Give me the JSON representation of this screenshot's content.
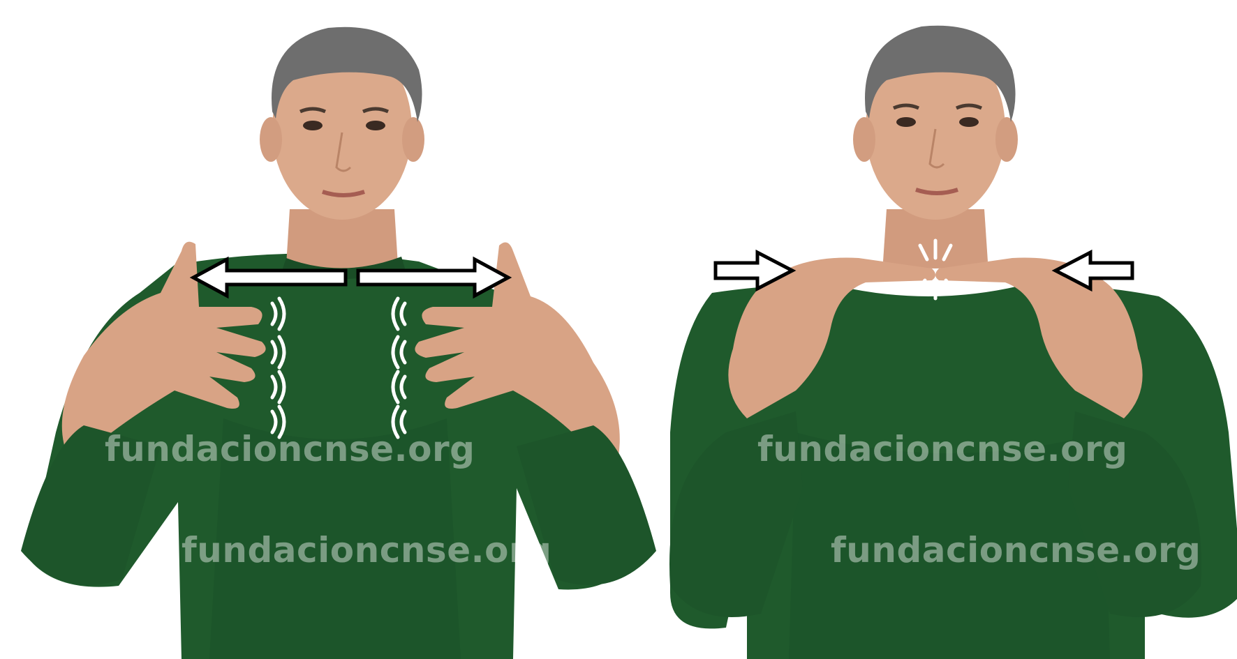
{
  "watermark": "fundacioncnse.org",
  "colors": {
    "background": "#ffffff",
    "shirt": "#1f5a2c",
    "shirt_shadow": "#164522",
    "skin": "#d9a688",
    "hair": "#6b6b6b",
    "arrow_fill": "#ffffff",
    "arrow_stroke": "#000000",
    "motion_marks": "#ffffff"
  },
  "frames": [
    {
      "description_icon": "hands-moving-apart-wiggling-fingers",
      "arrows": [
        "arrow-left",
        "arrow-right"
      ]
    },
    {
      "description_icon": "fingertips-touching-contact",
      "arrows": [
        "arrow-right",
        "arrow-left"
      ]
    }
  ]
}
